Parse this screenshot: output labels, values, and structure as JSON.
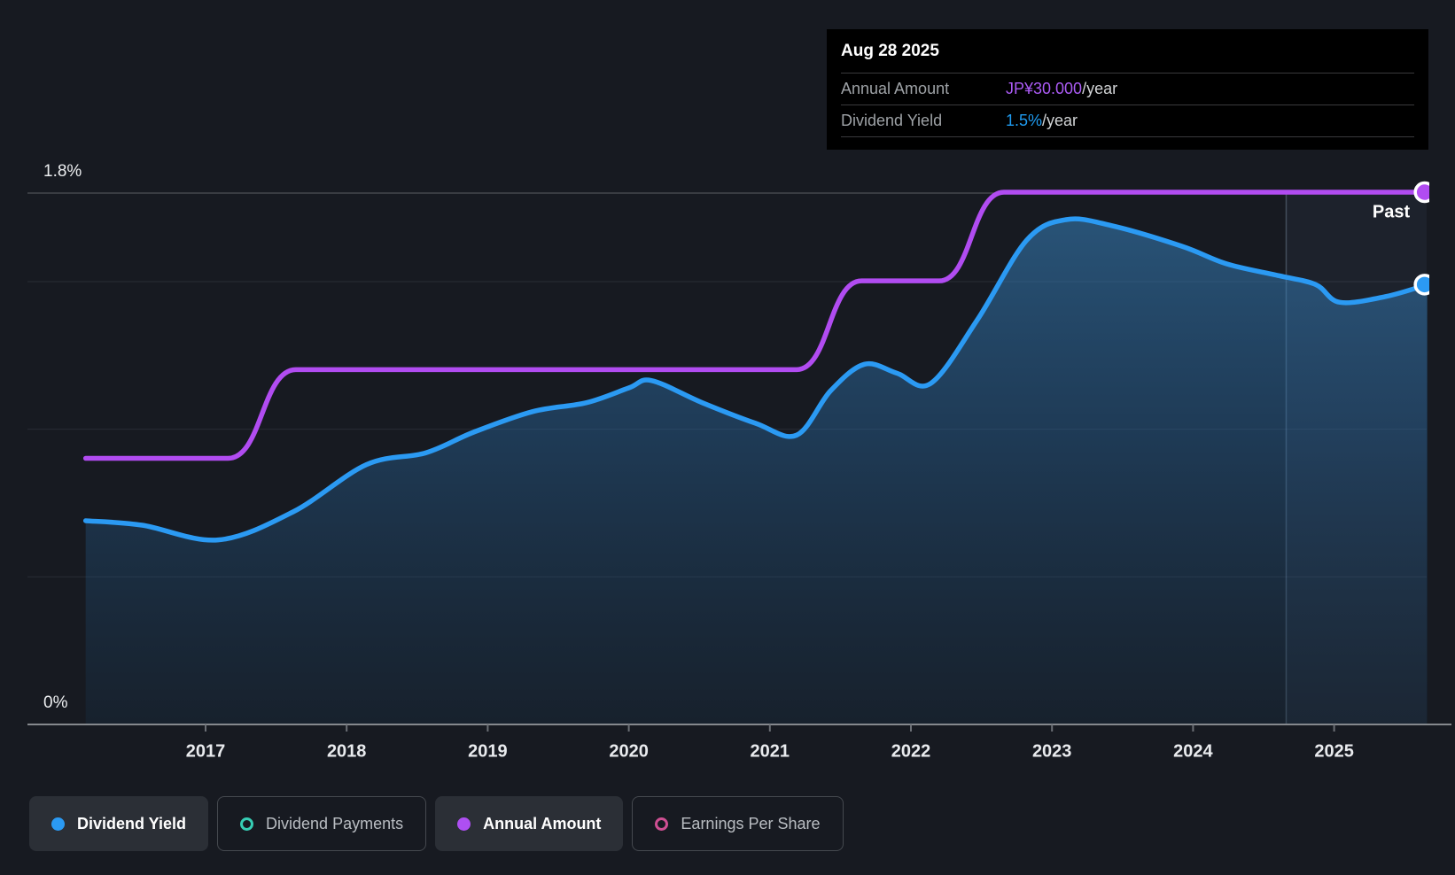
{
  "tooltip": {
    "date": "Aug 28 2025",
    "rows": [
      {
        "label": "Annual Amount",
        "value": "JP¥30.000",
        "suffix": "/year"
      },
      {
        "label": "Dividend Yield",
        "value": "1.5%",
        "suffix": "/year"
      }
    ]
  },
  "y_axis": {
    "top_label": "1.8%",
    "bottom_label": "0%"
  },
  "past_label": "Past",
  "colors": {
    "dividend_yield": "#2B9AF3",
    "annual_amount": "#B14CF1",
    "dividend_payments": "#36CDB4",
    "earnings_per_share": "#CE4F92",
    "tooltip_value_amount": "#AB5BF5",
    "tooltip_value_yield": "#1F9BF0",
    "background": "#171A21"
  },
  "legend": {
    "items": [
      {
        "label": "Dividend Yield",
        "marker": "dot",
        "color": "#2B9AF3",
        "active": true
      },
      {
        "label": "Dividend Payments",
        "marker": "ring",
        "color": "#36CDB4",
        "active": false
      },
      {
        "label": "Annual Amount",
        "marker": "dot",
        "color": "#AE4FF2",
        "active": true
      },
      {
        "label": "Earnings Per Share",
        "marker": "ring",
        "color": "#CE4F92",
        "active": false
      }
    ]
  },
  "chart_data": {
    "type": "line",
    "x_ticks": [
      2017,
      2018,
      2019,
      2020,
      2021,
      2022,
      2023,
      2024,
      2025
    ],
    "x_range": [
      2016.15,
      2025.66
    ],
    "past_divider_x": 2024.66,
    "y_left": {
      "unit": "%",
      "label_top": "1.8%",
      "label_bottom": "0%",
      "range": [
        0,
        1.8
      ],
      "gridlines_pct": [
        1.8,
        1.5,
        1.0,
        0.5,
        0
      ]
    },
    "y_right": {
      "unit": "JP¥",
      "range": [
        0,
        30
      ]
    },
    "series": [
      {
        "name": "Dividend Yield",
        "color": "#2B9AF3",
        "style": "smooth-area",
        "axis": "left",
        "end_marker": true,
        "current_value": "1.5%",
        "points": [
          [
            2016.15,
            0.69
          ],
          [
            2016.55,
            0.675
          ],
          [
            2017.09,
            0.625
          ],
          [
            2017.62,
            0.72
          ],
          [
            2018.14,
            0.88
          ],
          [
            2018.56,
            0.92
          ],
          [
            2018.9,
            0.99
          ],
          [
            2019.32,
            1.06
          ],
          [
            2019.7,
            1.09
          ],
          [
            2020.0,
            1.14
          ],
          [
            2020.16,
            1.165
          ],
          [
            2020.52,
            1.09
          ],
          [
            2020.9,
            1.02
          ],
          [
            2021.19,
            0.98
          ],
          [
            2021.43,
            1.13
          ],
          [
            2021.67,
            1.22
          ],
          [
            2021.9,
            1.19
          ],
          [
            2022.14,
            1.155
          ],
          [
            2022.47,
            1.37
          ],
          [
            2022.82,
            1.64
          ],
          [
            2023.1,
            1.71
          ],
          [
            2023.42,
            1.69
          ],
          [
            2023.92,
            1.62
          ],
          [
            2024.24,
            1.56
          ],
          [
            2024.61,
            1.52
          ],
          [
            2024.87,
            1.49
          ],
          [
            2025.04,
            1.43
          ],
          [
            2025.37,
            1.45
          ],
          [
            2025.66,
            1.49
          ]
        ]
      },
      {
        "name": "Annual Amount",
        "color": "#B14CF1",
        "style": "smooth-step",
        "axis": "right",
        "end_marker": true,
        "current_value": "JP¥30.000",
        "points": [
          [
            2016.15,
            15
          ],
          [
            2017.16,
            15
          ],
          [
            2017.64,
            20
          ],
          [
            2021.19,
            20
          ],
          [
            2021.65,
            25
          ],
          [
            2022.2,
            25
          ],
          [
            2022.66,
            30
          ],
          [
            2025.66,
            30
          ]
        ]
      }
    ]
  }
}
